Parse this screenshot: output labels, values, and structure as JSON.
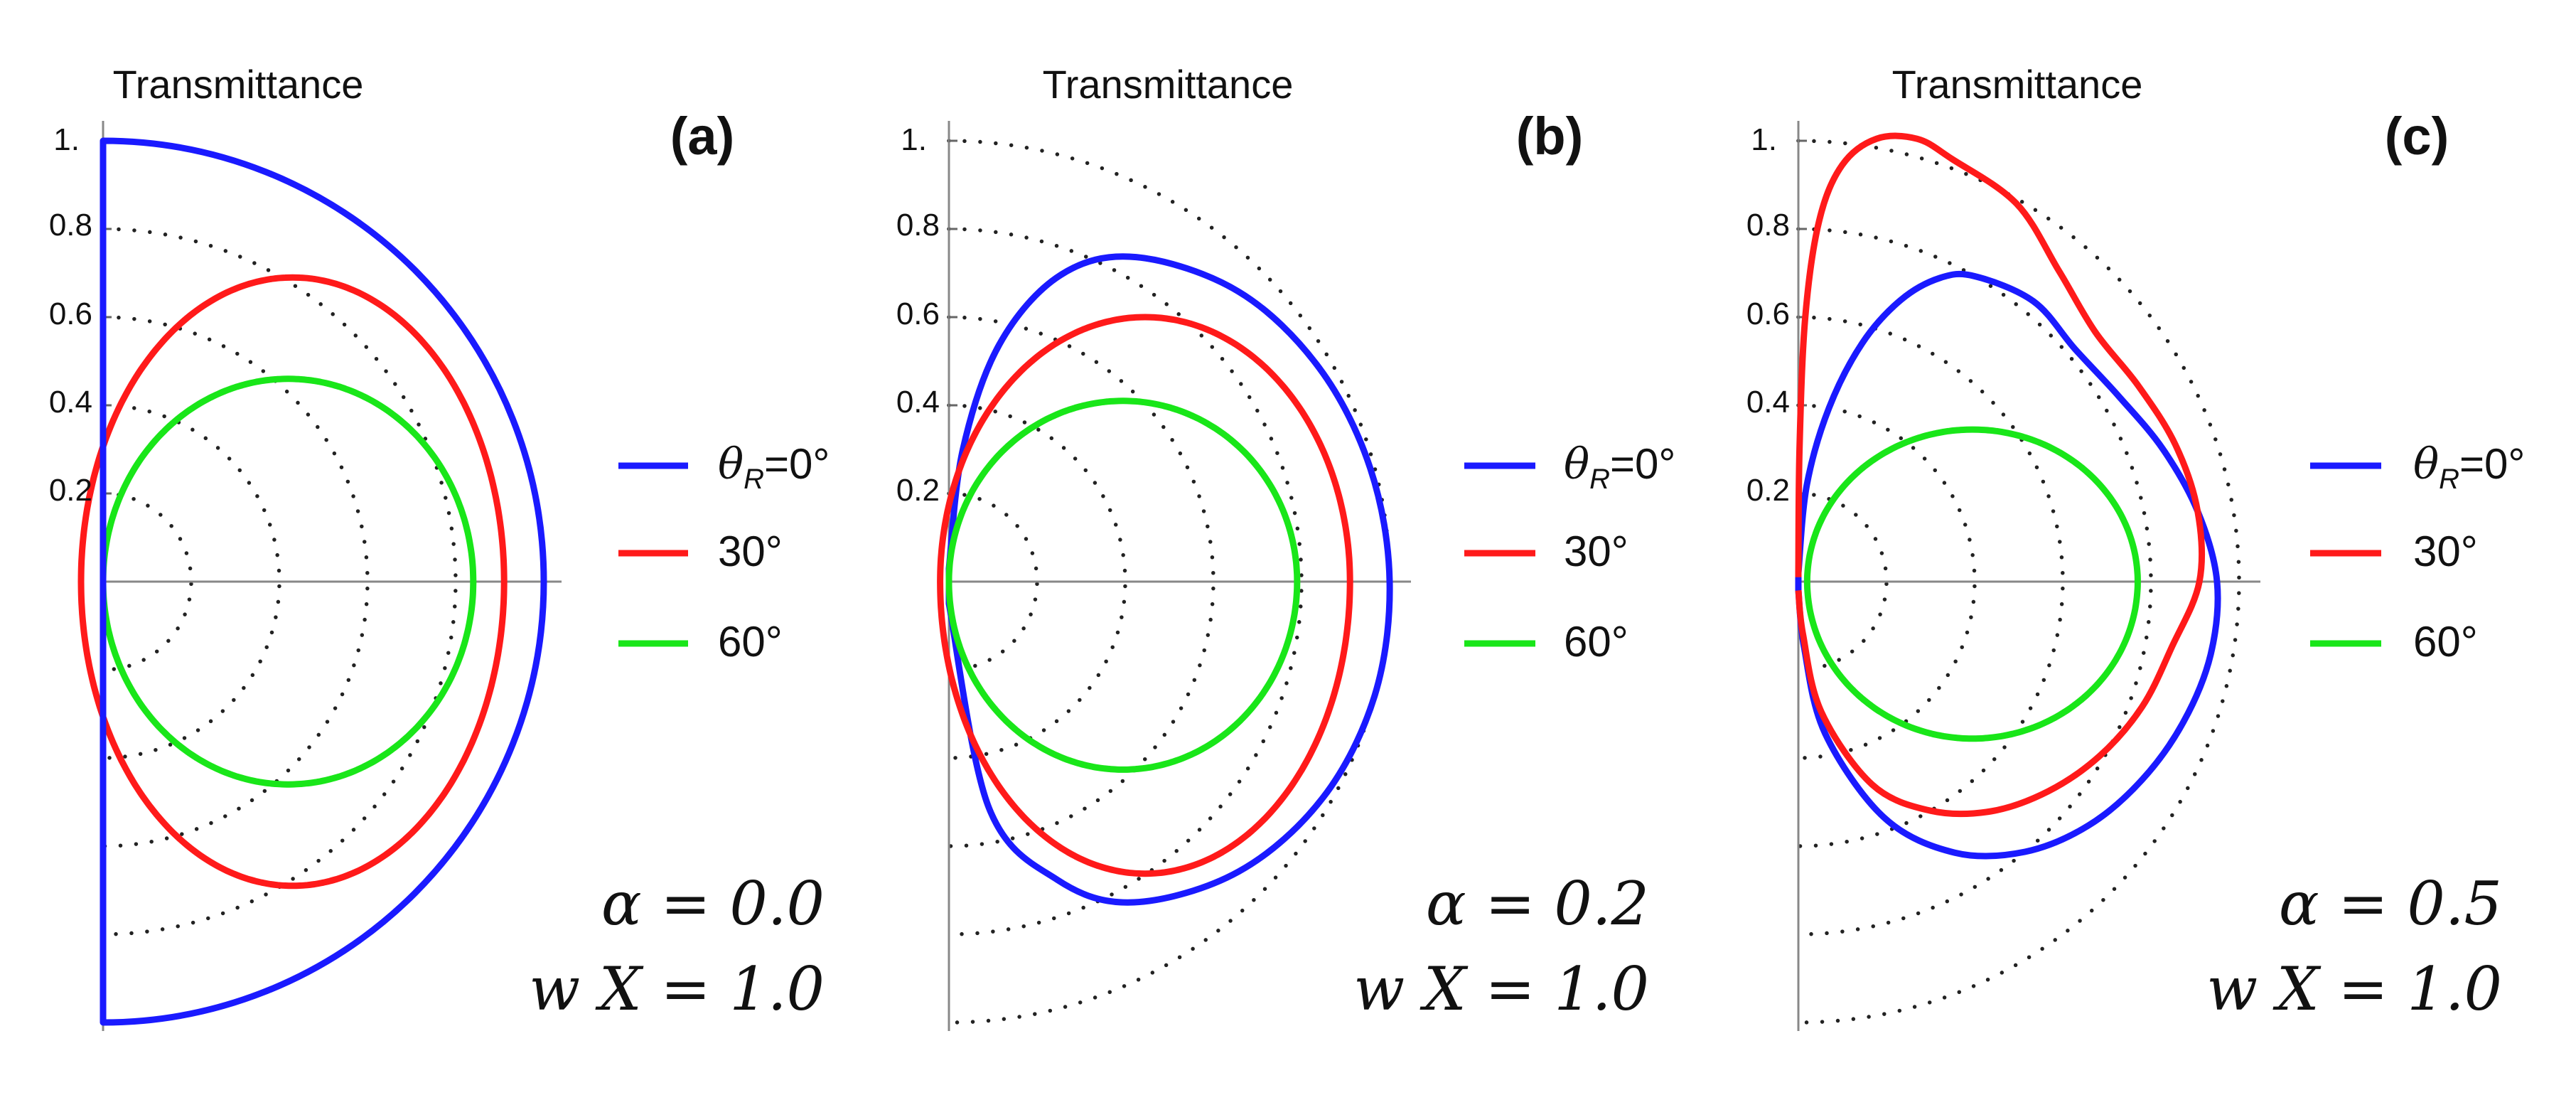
{
  "chart_data": [
    {
      "type": "polar-half",
      "title": "Transmittance",
      "panel_label": "(a)",
      "radial_range": [
        0,
        1
      ],
      "radial_ticks": [
        "0.2",
        "0.4",
        "0.6",
        "0.8",
        "1."
      ],
      "angle_range_deg": [
        -90,
        90
      ],
      "legend": {
        "placement": "right"
      },
      "series": [
        {
          "name": "θR=0°",
          "color": "#1a1aff",
          "shape": "ring",
          "ring": {
            "r": 1.0
          }
        },
        {
          "name": "30°",
          "color": "#ff1a1a",
          "shape": "ellipse",
          "ellipse": {
            "cx": 0.43,
            "a": 0.48,
            "b": 0.69
          }
        },
        {
          "name": "60°",
          "color": "#19e619",
          "shape": "ellipse",
          "ellipse": {
            "cx": 0.42,
            "a": 0.42,
            "b": 0.46
          }
        }
      ],
      "annotations": {
        "alpha": "α = 0.0",
        "wx": "w X = 1.0"
      },
      "legend_labels": {
        "theta": "θ",
        "sub": "R",
        "first": "=0°",
        "second": "30°",
        "third": "60°"
      }
    },
    {
      "type": "polar-half",
      "title": "Transmittance",
      "panel_label": "(b)",
      "radial_range": [
        0,
        1
      ],
      "radial_ticks": [
        "0.2",
        "0.4",
        "0.6",
        "0.8",
        "1."
      ],
      "angle_range_deg": [
        -90,
        90
      ],
      "legend": {
        "placement": "right"
      },
      "series": [
        {
          "name": "θR=0°",
          "color": "#1a1aff",
          "shape": "points",
          "points": [
            [
              -90,
              0.05
            ],
            [
              -80,
              0.52
            ],
            [
              -70,
              0.72
            ],
            [
              -60,
              0.84
            ],
            [
              -45,
              0.93
            ],
            [
              -30,
              0.98
            ],
            [
              -15,
              1.0
            ],
            [
              0,
              1.0
            ],
            [
              15,
              0.99
            ],
            [
              30,
              0.97
            ],
            [
              45,
              0.93
            ],
            [
              60,
              0.85
            ],
            [
              70,
              0.74
            ],
            [
              78,
              0.55
            ],
            [
              84,
              0.3
            ],
            [
              90,
              0.03
            ]
          ]
        },
        {
          "name": "30°",
          "color": "#ff1a1a",
          "shape": "ellipse",
          "ellipse": {
            "cx": 0.445,
            "a": 0.465,
            "b": 0.6,
            "c": -0.13
          }
        },
        {
          "name": "60°",
          "color": "#19e619",
          "shape": "ellipse",
          "ellipse": {
            "cx": 0.395,
            "a": 0.395,
            "b": 0.41,
            "c": -0.05
          }
        }
      ],
      "annotations": {
        "alpha": "α = 0.2",
        "wx": "w X = 1.0"
      },
      "legend_labels": {
        "theta": "θ",
        "sub": "R",
        "first": "=0°",
        "second": "30°",
        "third": "60°"
      }
    },
    {
      "type": "polar-half",
      "title": "Transmittance",
      "panel_label": "(c)",
      "radial_range": [
        0,
        1
      ],
      "radial_ticks": [
        "0.2",
        "0.4",
        "0.6",
        "0.8",
        "1."
      ],
      "angle_range_deg": [
        -90,
        90
      ],
      "legend": {
        "placement": "right"
      },
      "series": [
        {
          "name": "θR=0°",
          "color": "#1a1aff",
          "shape": "points",
          "points": [
            [
              -90,
              0.02
            ],
            [
              -85,
              0.15
            ],
            [
              -80,
              0.35
            ],
            [
              -70,
              0.57
            ],
            [
              -60,
              0.71
            ],
            [
              -50,
              0.8
            ],
            [
              -40,
              0.86
            ],
            [
              -30,
              0.9
            ],
            [
              -20,
              0.93
            ],
            [
              -10,
              0.95
            ],
            [
              0,
              0.95
            ],
            [
              10,
              0.92
            ],
            [
              20,
              0.88
            ],
            [
              30,
              0.84
            ],
            [
              40,
              0.82
            ],
            [
              50,
              0.83
            ],
            [
              60,
              0.8
            ],
            [
              65,
              0.76
            ],
            [
              70,
              0.68
            ],
            [
              75,
              0.56
            ],
            [
              80,
              0.4
            ],
            [
              85,
              0.22
            ],
            [
              90,
              0.02
            ]
          ]
        },
        {
          "name": "30°",
          "color": "#ff1a1a",
          "shape": "points",
          "points": [
            [
              -90,
              0.02
            ],
            [
              -85,
              0.12
            ],
            [
              -80,
              0.3
            ],
            [
              -70,
              0.49
            ],
            [
              -60,
              0.6
            ],
            [
              -50,
              0.68
            ],
            [
              -40,
              0.74
            ],
            [
              -30,
              0.79
            ],
            [
              -20,
              0.83
            ],
            [
              -10,
              0.86
            ],
            [
              0,
              0.91
            ],
            [
              10,
              0.92
            ],
            [
              20,
              0.91
            ],
            [
              30,
              0.89
            ],
            [
              40,
              0.88
            ],
            [
              50,
              0.92
            ],
            [
              60,
              0.99
            ],
            [
              70,
              1.02
            ],
            [
              75,
              1.04
            ],
            [
              80,
              1.02
            ],
            [
              84,
              0.95
            ],
            [
              86.7,
              0.82
            ],
            [
              88.5,
              0.6
            ],
            [
              89.5,
              0.3
            ],
            [
              90,
              0.02
            ]
          ]
        },
        {
          "name": "60°",
          "color": "#19e619",
          "shape": "ellipse",
          "ellipse": {
            "cx": 0.395,
            "a": 0.375,
            "b": 0.345,
            "c": -0.04
          }
        }
      ],
      "annotations": {
        "alpha": "α = 0.5",
        "wx": "w X = 1.0"
      },
      "legend_labels": {
        "theta": "θ",
        "sub": "R",
        "first": "=0°",
        "second": "30°",
        "third": "60°"
      }
    }
  ]
}
